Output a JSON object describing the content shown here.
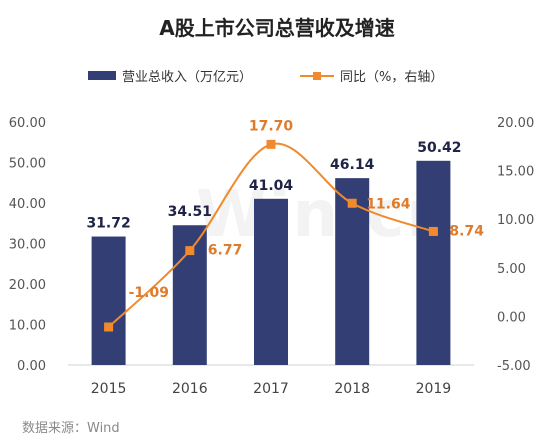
{
  "chart_data": {
    "type": "bar",
    "title": "A股上市公司总营收及增速",
    "categories": [
      "2015",
      "2016",
      "2017",
      "2018",
      "2019"
    ],
    "series": [
      {
        "name": "营业总收入（万亿元）",
        "type": "bar",
        "axis": "left",
        "values": [
          31.72,
          34.51,
          41.04,
          46.14,
          50.42
        ],
        "labels": [
          "31.72",
          "34.51",
          "41.04",
          "46.14",
          "50.42"
        ],
        "color": "#333f74"
      },
      {
        "name": "同比（%，右轴）",
        "type": "line",
        "axis": "right",
        "values": [
          -1.09,
          6.77,
          17.7,
          11.64,
          8.74
        ],
        "labels": [
          "-1.09",
          "6.77",
          "17.70",
          "11.64",
          "8.74"
        ],
        "color": "#f08a2c",
        "smooth": true
      }
    ],
    "y_left": {
      "ylim": [
        0,
        60
      ],
      "ticks": [
        "0.00",
        "10.00",
        "20.00",
        "30.00",
        "40.00",
        "50.00",
        "60.00"
      ]
    },
    "y_right": {
      "ylim": [
        -5,
        20
      ],
      "ticks": [
        "-5.00",
        "0.00",
        "5.00",
        "10.00",
        "15.00",
        "20.00"
      ]
    },
    "grid": false,
    "legend_position": "top"
  },
  "source": "数据来源：Wind",
  "watermark": "Win.cn"
}
